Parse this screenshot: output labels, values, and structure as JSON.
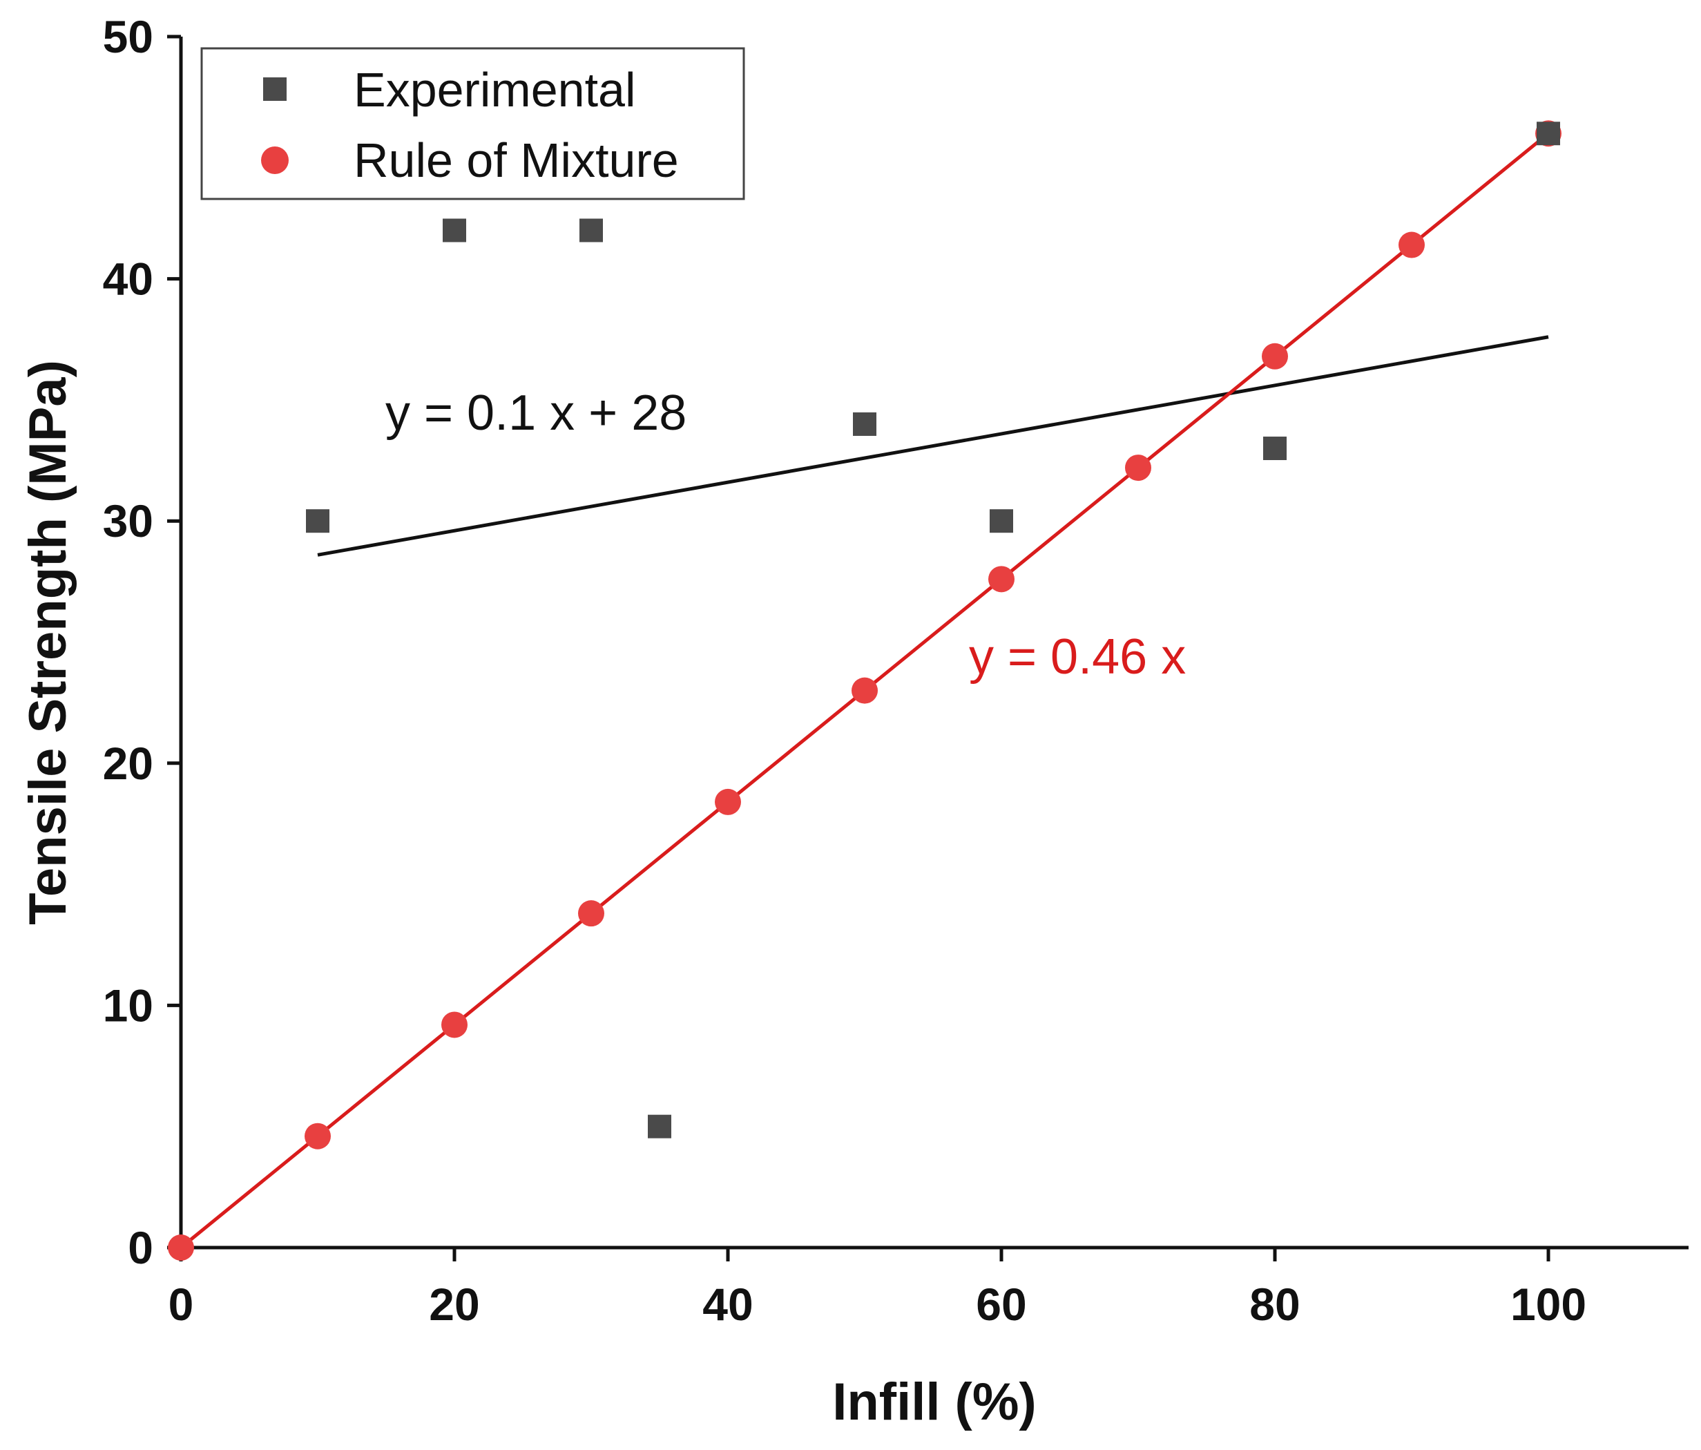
{
  "chart_data": {
    "type": "scatter",
    "xlabel": "Infill (%)",
    "ylabel": "Tensile Strength (MPa)",
    "xlim": [
      0,
      110
    ],
    "ylim": [
      0,
      50
    ],
    "x_ticks": [
      0,
      20,
      40,
      60,
      80,
      100
    ],
    "y_ticks": [
      0,
      10,
      20,
      30,
      40,
      50
    ],
    "grid": false,
    "legend_position": "top-left",
    "colors": {
      "experimental": "#4a4a4a",
      "rule": "#e84040",
      "rule_line": "#d91c1c",
      "fit_line": "#111111",
      "axis": "#111111"
    },
    "series": [
      {
        "name": "Experimental",
        "marker": "square",
        "points": [
          [
            10,
            30
          ],
          [
            20,
            42
          ],
          [
            30,
            42
          ],
          [
            35,
            5
          ],
          [
            50,
            34
          ],
          [
            60,
            30
          ],
          [
            80,
            33
          ],
          [
            100,
            46
          ]
        ]
      },
      {
        "name": "Rule of Mixture",
        "marker": "circle",
        "points": [
          [
            0,
            0
          ],
          [
            10,
            4.6
          ],
          [
            20,
            9.2
          ],
          [
            30,
            13.8
          ],
          [
            40,
            18.4
          ],
          [
            50,
            23
          ],
          [
            60,
            27.6
          ],
          [
            70,
            32.2
          ],
          [
            80,
            36.8
          ],
          [
            90,
            41.4
          ],
          [
            100,
            46
          ]
        ]
      }
    ],
    "fits": [
      {
        "name": "experimental-fit",
        "slope": 0.1,
        "intercept": 27.6,
        "x_range": [
          10,
          100
        ],
        "label": "y = 0.1 x + 28"
      },
      {
        "name": "rule-fit",
        "slope": 0.46,
        "intercept": 0,
        "x_range": [
          0,
          100
        ],
        "label": "y = 0.46 x"
      }
    ]
  }
}
